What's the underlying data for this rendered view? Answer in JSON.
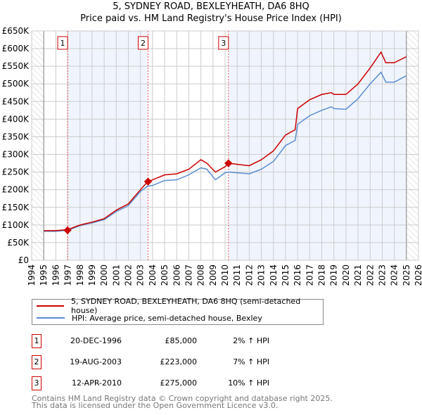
{
  "chart_data": {
    "type": "line",
    "title": "5, SYDNEY ROAD, BEXLEYHEATH, DA6 8HQ",
    "subtitle": "Price paid vs. HM Land Registry's House Price Index (HPI)",
    "xlim": [
      1994,
      2026
    ],
    "ylim": [
      0,
      650000
    ],
    "y_ticks": [
      "£0",
      "£50K",
      "£100K",
      "£150K",
      "£200K",
      "£250K",
      "£300K",
      "£350K",
      "£400K",
      "£450K",
      "£500K",
      "£550K",
      "£600K",
      "£650K"
    ],
    "x_ticks": [
      "1994",
      "1995",
      "1996",
      "1997",
      "1998",
      "1999",
      "2000",
      "2001",
      "2002",
      "2003",
      "2004",
      "2005",
      "2006",
      "2007",
      "2008",
      "2009",
      "2010",
      "2011",
      "2012",
      "2013",
      "2014",
      "2015",
      "2016",
      "2017",
      "2018",
      "2019",
      "2020",
      "2021",
      "2022",
      "2023",
      "2024",
      "2025",
      "2026"
    ],
    "grid": true,
    "series": [
      {
        "name": "5, SYDNEY ROAD, BEXLEYHEATH, DA6 8HQ (semi-detached house)",
        "color": "#cc0000",
        "x": [
          1995,
          1996,
          1997,
          1998,
          1999,
          2000,
          2001,
          2002,
          2003,
          2003.6,
          2004,
          2005,
          2006,
          2007,
          2008,
          2008.5,
          2009.2,
          2010,
          2010.3,
          2011,
          2012,
          2013,
          2014,
          2015,
          2015.8,
          2016,
          2017,
          2018,
          2018.8,
          2019,
          2020,
          2021,
          2022,
          2022.9,
          2023.3,
          2024,
          2025
        ],
        "y": [
          84000,
          84000,
          87000,
          100000,
          108000,
          118000,
          142000,
          160000,
          200000,
          223000,
          228000,
          242000,
          245000,
          258000,
          285000,
          275000,
          250000,
          265000,
          275000,
          272000,
          268000,
          285000,
          310000,
          355000,
          370000,
          430000,
          455000,
          470000,
          475000,
          470000,
          470000,
          500000,
          545000,
          590000,
          560000,
          560000,
          577000
        ]
      },
      {
        "name": "HPI: Average price, semi-detached house, Bexley",
        "color": "#5b8fd0",
        "x": [
          1995,
          1996,
          1997,
          1998,
          1999,
          2000,
          2001,
          2002,
          2003,
          2003.6,
          2004,
          2005,
          2006,
          2007,
          2008,
          2008.5,
          2009.2,
          2010,
          2010.3,
          2011,
          2012,
          2013,
          2014,
          2015,
          2015.8,
          2016,
          2017,
          2018,
          2018.8,
          2019,
          2020,
          2021,
          2022,
          2022.9,
          2023.3,
          2024,
          2025
        ],
        "y": [
          82000,
          82000,
          85000,
          98000,
          106000,
          115000,
          138000,
          155000,
          195000,
          210000,
          212000,
          226000,
          228000,
          242000,
          262000,
          258000,
          228000,
          248000,
          250000,
          248000,
          245000,
          258000,
          280000,
          325000,
          340000,
          385000,
          410000,
          425000,
          435000,
          430000,
          428000,
          458000,
          500000,
          533000,
          505000,
          505000,
          523000
        ]
      }
    ],
    "sales": [
      {
        "label": "1",
        "x": 1996.97,
        "y": 85000,
        "date": "20-DEC-1996",
        "price": "£85,000",
        "hpi": "2% ↑ HPI"
      },
      {
        "label": "2",
        "x": 2003.63,
        "y": 223000,
        "date": "19-AUG-2003",
        "price": "£223,000",
        "hpi": "7% ↑ HPI"
      },
      {
        "label": "3",
        "x": 2010.28,
        "y": 275000,
        "date": "12-APR-2010",
        "price": "£275,000",
        "hpi": "10% ↑ HPI"
      }
    ],
    "legend_placement": "below"
  },
  "footer": {
    "line1": "Contains HM Land Registry data © Crown copyright and database right 2025.",
    "line2": "This data is licensed under the Open Government Licence v3.0."
  }
}
